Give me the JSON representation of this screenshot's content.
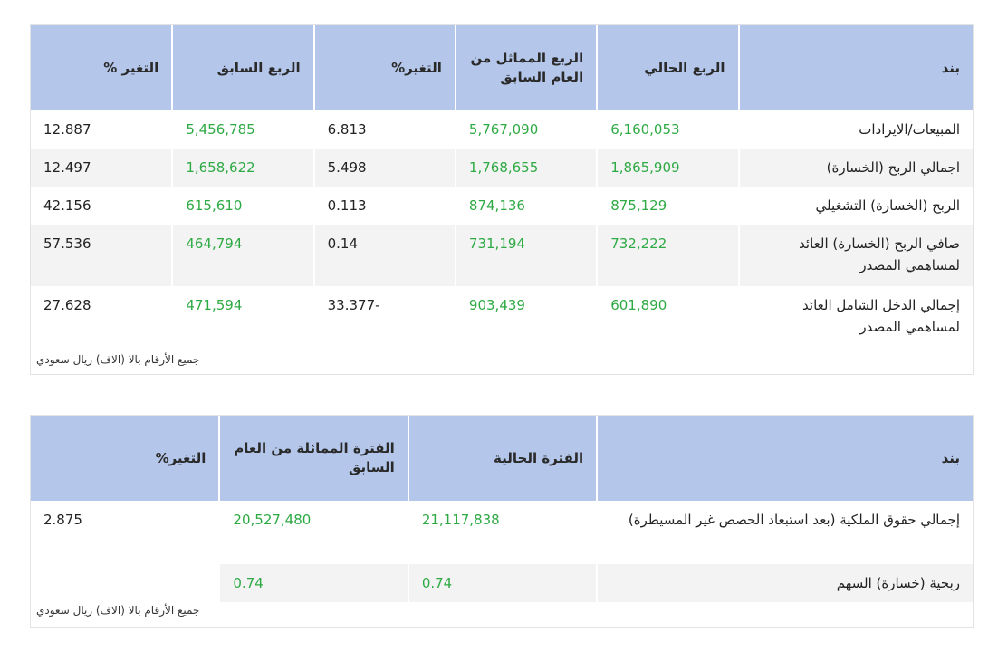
{
  "table1": {
    "headers": [
      "بند",
      "الربع الحالي",
      "الربع المماثل من العام السابق",
      "التغير%",
      "الربع السابق",
      "التغير %"
    ],
    "rows": [
      {
        "label": "المبيعات/الايرادات",
        "current": "6,160,053",
        "same_last_year": "5,767,090",
        "change_yoy": "6.813",
        "previous": "5,456,785",
        "change_qoq": "12.887"
      },
      {
        "label": "اجمالي الربح (الخسارة)",
        "current": "1,865,909",
        "same_last_year": "1,768,655",
        "change_yoy": "5.498",
        "previous": "1,658,622",
        "change_qoq": "12.497"
      },
      {
        "label": "الربح (الخسارة) التشغيلي",
        "current": "875,129",
        "same_last_year": "874,136",
        "change_yoy": "0.113",
        "previous": "615,610",
        "change_qoq": "42.156"
      },
      {
        "label": "صافي الربح (الخسارة) العائد لمساهمي المصدر",
        "current": "732,222",
        "same_last_year": "731,194",
        "change_yoy": "0.14",
        "previous": "464,794",
        "change_qoq": "57.536"
      },
      {
        "label": "إجمالي الدخل الشامل العائد لمساهمي المصدر",
        "current": "601,890",
        "same_last_year": "903,439",
        "change_yoy": "33.377-",
        "previous": "471,594",
        "change_qoq": "27.628"
      }
    ],
    "note": "جميع الأرقام بالا (الاف) ريال سعودي"
  },
  "table2": {
    "headers": [
      "بند",
      "الفترة الحالية",
      "الفترة المماثلة من العام السابق",
      "التغير%"
    ],
    "rows": [
      {
        "label": "إجمالي حقوق الملكية (بعد استبعاد الحصص غير المسيطرة)",
        "current": "21,117,838",
        "same_last_year": "20,527,480",
        "change": "2.875"
      },
      {
        "label": "ربحية (خسارة) السهم",
        "current": "0.74",
        "same_last_year": "0.74",
        "change": ""
      }
    ],
    "note": "جميع الأرقام بالا (الاف) ريال سعودي"
  },
  "colors": {
    "header_bg": "#b4c7ea",
    "value_green": "#2eaa44",
    "row_shade": "#f3f3f3"
  }
}
